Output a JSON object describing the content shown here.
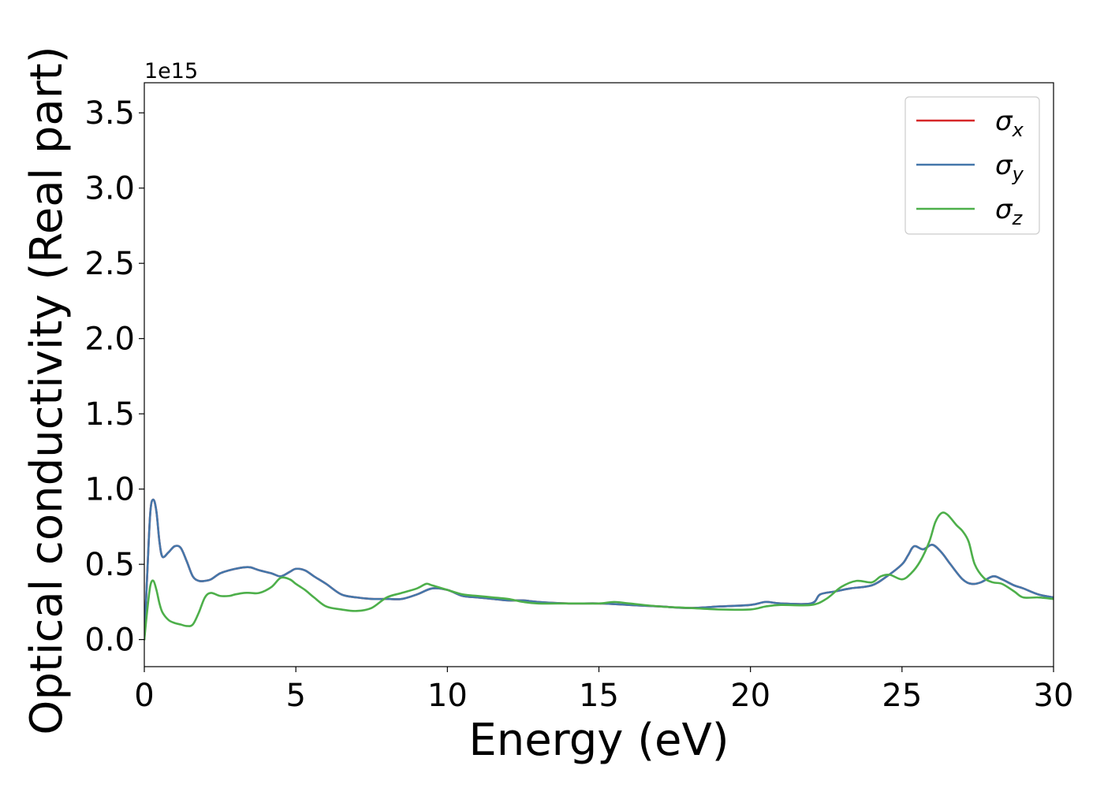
{
  "chart_data": {
    "type": "line",
    "title": "",
    "xlabel": "Energy (eV)",
    "ylabel": "Optical conductivity (Real part)",
    "y_offset_label": "1e15",
    "xlim": [
      0,
      30
    ],
    "ylim": [
      -0.18,
      3.7
    ],
    "xticks": [
      0,
      5,
      10,
      15,
      20,
      25,
      30
    ],
    "xtick_labels": [
      "0",
      "5",
      "10",
      "15",
      "20",
      "25",
      "30"
    ],
    "yticks": [
      0.0,
      0.5,
      1.0,
      1.5,
      2.0,
      2.5,
      3.0,
      3.5
    ],
    "ytick_labels": [
      "0.0",
      "0.5",
      "1.0",
      "1.5",
      "2.0",
      "2.5",
      "3.0",
      "3.5"
    ],
    "grid": false,
    "legend_position": "top-right",
    "series": [
      {
        "name": "σ",
        "subscript": "x",
        "color": "#d62728",
        "x": [
          0,
          0.1,
          0.2,
          0.3,
          0.4,
          0.5,
          0.6,
          0.8,
          1.0,
          1.2,
          1.4,
          1.6,
          1.8,
          2.0,
          2.2,
          2.5,
          2.8,
          3.0,
          3.3,
          3.5,
          3.8,
          4.2,
          4.5,
          4.8,
          5.0,
          5.3,
          5.6,
          6.0,
          6.5,
          7.0,
          7.5,
          8.0,
          8.5,
          9.0,
          9.5,
          10.0,
          10.5,
          11.0,
          11.5,
          12.0,
          12.5,
          13.0,
          14.0,
          15.0,
          16.0,
          17.0,
          18.0,
          19.0,
          20.0,
          20.5,
          21.0,
          22.0,
          22.3,
          22.8,
          23.3,
          24.0,
          24.5,
          25.0,
          25.2,
          25.4,
          25.7,
          26.0,
          26.3,
          26.6,
          27.0,
          27.3,
          27.6,
          28.0,
          28.3,
          28.7,
          29.0,
          29.5,
          30.0
        ],
        "y": [
          0.0,
          0.45,
          0.85,
          0.93,
          0.85,
          0.65,
          0.55,
          0.58,
          0.62,
          0.61,
          0.52,
          0.42,
          0.39,
          0.39,
          0.4,
          0.44,
          0.46,
          0.47,
          0.48,
          0.48,
          0.46,
          0.44,
          0.42,
          0.45,
          0.47,
          0.46,
          0.42,
          0.37,
          0.3,
          0.28,
          0.27,
          0.27,
          0.27,
          0.3,
          0.34,
          0.33,
          0.29,
          0.28,
          0.27,
          0.26,
          0.26,
          0.25,
          0.24,
          0.24,
          0.23,
          0.22,
          0.21,
          0.22,
          0.23,
          0.25,
          0.24,
          0.24,
          0.3,
          0.32,
          0.34,
          0.36,
          0.42,
          0.5,
          0.56,
          0.62,
          0.6,
          0.63,
          0.58,
          0.5,
          0.4,
          0.37,
          0.38,
          0.42,
          0.4,
          0.36,
          0.34,
          0.3,
          0.28
        ]
      },
      {
        "name": "σ",
        "subscript": "y",
        "color": "#4477aa",
        "x": [
          0,
          0.1,
          0.2,
          0.3,
          0.4,
          0.5,
          0.6,
          0.8,
          1.0,
          1.2,
          1.4,
          1.6,
          1.8,
          2.0,
          2.2,
          2.5,
          2.8,
          3.0,
          3.3,
          3.5,
          3.8,
          4.2,
          4.5,
          4.8,
          5.0,
          5.3,
          5.6,
          6.0,
          6.5,
          7.0,
          7.5,
          8.0,
          8.5,
          9.0,
          9.5,
          10.0,
          10.5,
          11.0,
          11.5,
          12.0,
          12.5,
          13.0,
          14.0,
          15.0,
          16.0,
          17.0,
          18.0,
          19.0,
          20.0,
          20.5,
          21.0,
          22.0,
          22.3,
          22.8,
          23.3,
          24.0,
          24.5,
          25.0,
          25.2,
          25.4,
          25.7,
          26.0,
          26.3,
          26.6,
          27.0,
          27.3,
          27.6,
          28.0,
          28.3,
          28.7,
          29.0,
          29.5,
          30.0
        ],
        "y": [
          0.0,
          0.45,
          0.85,
          0.93,
          0.85,
          0.65,
          0.55,
          0.58,
          0.62,
          0.61,
          0.52,
          0.42,
          0.39,
          0.39,
          0.4,
          0.44,
          0.46,
          0.47,
          0.48,
          0.48,
          0.46,
          0.44,
          0.42,
          0.45,
          0.47,
          0.46,
          0.42,
          0.37,
          0.3,
          0.28,
          0.27,
          0.27,
          0.27,
          0.3,
          0.34,
          0.33,
          0.29,
          0.28,
          0.27,
          0.26,
          0.26,
          0.25,
          0.24,
          0.24,
          0.23,
          0.22,
          0.21,
          0.22,
          0.23,
          0.25,
          0.24,
          0.24,
          0.3,
          0.32,
          0.34,
          0.36,
          0.42,
          0.5,
          0.56,
          0.62,
          0.6,
          0.63,
          0.58,
          0.5,
          0.4,
          0.37,
          0.38,
          0.42,
          0.4,
          0.36,
          0.34,
          0.3,
          0.28
        ]
      },
      {
        "name": "σ",
        "subscript": "z",
        "color": "#4daf4a",
        "x": [
          0,
          0.1,
          0.2,
          0.3,
          0.4,
          0.5,
          0.6,
          0.8,
          1.0,
          1.2,
          1.4,
          1.6,
          1.8,
          2.0,
          2.2,
          2.5,
          2.8,
          3.0,
          3.3,
          3.5,
          3.8,
          4.2,
          4.5,
          4.8,
          5.0,
          5.3,
          5.6,
          6.0,
          6.5,
          7.0,
          7.5,
          8.0,
          8.5,
          9.0,
          9.3,
          9.5,
          10.0,
          10.5,
          11.0,
          11.5,
          12.0,
          12.5,
          13.0,
          14.0,
          15.0,
          15.5,
          16.0,
          17.0,
          18.0,
          19.0,
          20.0,
          20.5,
          21.0,
          22.0,
          22.5,
          23.0,
          23.5,
          24.0,
          24.3,
          24.6,
          25.0,
          25.3,
          25.6,
          25.9,
          26.1,
          26.3,
          26.5,
          26.8,
          27.0,
          27.2,
          27.4,
          27.7,
          28.0,
          28.3,
          28.7,
          29.0,
          29.5,
          30.0
        ],
        "y": [
          0.0,
          0.2,
          0.36,
          0.39,
          0.33,
          0.24,
          0.18,
          0.13,
          0.11,
          0.1,
          0.09,
          0.1,
          0.18,
          0.28,
          0.31,
          0.29,
          0.29,
          0.3,
          0.31,
          0.31,
          0.31,
          0.35,
          0.41,
          0.4,
          0.37,
          0.33,
          0.28,
          0.22,
          0.2,
          0.19,
          0.21,
          0.28,
          0.31,
          0.34,
          0.37,
          0.36,
          0.33,
          0.3,
          0.29,
          0.28,
          0.27,
          0.25,
          0.24,
          0.24,
          0.24,
          0.25,
          0.24,
          0.22,
          0.21,
          0.2,
          0.2,
          0.22,
          0.23,
          0.23,
          0.27,
          0.35,
          0.39,
          0.38,
          0.42,
          0.43,
          0.4,
          0.44,
          0.52,
          0.65,
          0.78,
          0.84,
          0.83,
          0.76,
          0.72,
          0.65,
          0.5,
          0.41,
          0.38,
          0.37,
          0.32,
          0.28,
          0.28,
          0.27
        ]
      }
    ]
  }
}
